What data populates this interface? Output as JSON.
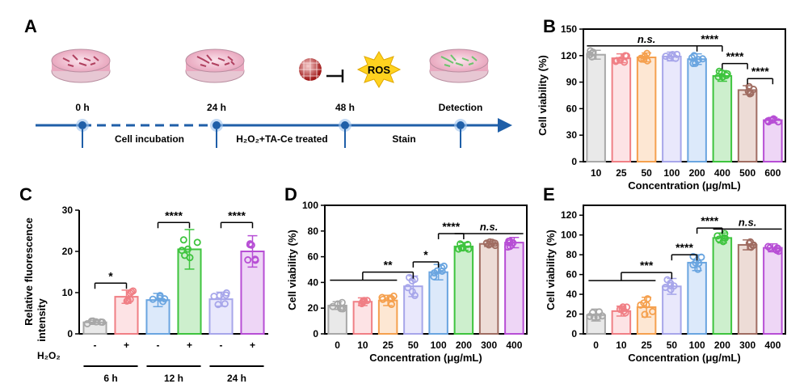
{
  "panel_labels": {
    "A": "A",
    "B": "B",
    "C": "C",
    "D": "D",
    "E": "E"
  },
  "timeline": {
    "times": [
      "0 h",
      "24 h",
      "48 h",
      "Detection"
    ],
    "stages": [
      "Cell incubation",
      "H₂O₂+TA-Ce treated",
      "Stain"
    ],
    "ros": "ROS"
  },
  "chart_data": [
    {
      "panel": "B",
      "type": "bar",
      "ylabel": "Cell viability (%)",
      "xlabel": "Concentration (μg/mL)",
      "ylim": [
        0,
        150
      ],
      "yticks": [
        0,
        30,
        60,
        90,
        120,
        150
      ],
      "categories": [
        "10",
        "25",
        "50",
        "100",
        "200",
        "400",
        "500",
        "600"
      ],
      "values": [
        121,
        117,
        118,
        119,
        116,
        97,
        81,
        47
      ],
      "errors": [
        5,
        5,
        5,
        5,
        6,
        6,
        5,
        3
      ],
      "colors": [
        "#a8a8a8",
        "#f07f85",
        "#f5a04e",
        "#a7a6ea",
        "#6aa5e0",
        "#3ec43e",
        "#a06d62",
        "#b74ed5"
      ],
      "fills": [
        "#e9e9e9",
        "#fde3e5",
        "#fde7d3",
        "#e9e8fc",
        "#dce9fa",
        "#cdefcd",
        "#eddcd6",
        "#eed6f6"
      ],
      "annotations": [
        {
          "text": "n.s.",
          "from": 0,
          "to": 4,
          "y": 131,
          "italic": true,
          "style": "line"
        },
        {
          "text": "****",
          "from": 4,
          "to": 5,
          "y": 131,
          "style": "bracket"
        },
        {
          "text": "****",
          "from": 5,
          "to": 6,
          "y": 111,
          "style": "bracket"
        },
        {
          "text": "****",
          "from": 6,
          "to": 7,
          "y": 94,
          "style": "bracket"
        }
      ]
    },
    {
      "panel": "C",
      "type": "bar",
      "ylabel": "Relative fluorescence intensity",
      "ylim": [
        0,
        30
      ],
      "yticks": [
        0,
        10,
        20,
        30
      ],
      "row_label": "H₂O₂",
      "categories": [
        "-",
        "+",
        "-",
        "+",
        "-",
        "+"
      ],
      "groups": [
        "6 h",
        "12 h",
        "24 h"
      ],
      "values": [
        2.8,
        9.0,
        8.2,
        20.5,
        8.4,
        20.0
      ],
      "errors": [
        0.5,
        1.6,
        1.6,
        4.8,
        1.7,
        3.8
      ],
      "colors": [
        "#a8a8a8",
        "#f07f85",
        "#6aa5e0",
        "#3ec43e",
        "#a7a6ea",
        "#b74ed5"
      ],
      "fills": [
        "#e9e9e9",
        "#fde3e5",
        "#dce9fa",
        "#cdefcd",
        "#e9e8fc",
        "#eed6f6"
      ],
      "annotations": [
        {
          "text": "*",
          "from": 0,
          "to": 1,
          "y": 12.3,
          "style": "bracket"
        },
        {
          "text": "****",
          "from": 2,
          "to": 3,
          "y": 27.0,
          "style": "bracket"
        },
        {
          "text": "****",
          "from": 4,
          "to": 5,
          "y": 27.0,
          "style": "bracket"
        }
      ]
    },
    {
      "panel": "D",
      "type": "bar",
      "ylabel": "Cell viability (%)",
      "xlabel": "Concentration (μg/mL)",
      "ylim": [
        0,
        100
      ],
      "yticks": [
        0,
        20,
        40,
        60,
        80,
        100
      ],
      "categories": [
        "0",
        "10",
        "25",
        "50",
        "100",
        "200",
        "300",
        "400"
      ],
      "values": [
        22,
        25,
        26,
        37,
        48,
        68,
        70,
        71
      ],
      "errors": [
        3,
        3,
        4,
        8,
        6,
        3,
        2,
        4
      ],
      "colors": [
        "#a8a8a8",
        "#f07f85",
        "#f5a04e",
        "#a7a6ea",
        "#6aa5e0",
        "#3ec43e",
        "#a06d62",
        "#b74ed5"
      ],
      "fills": [
        "#e9e9e9",
        "#fde3e5",
        "#fde7d3",
        "#e9e8fc",
        "#dce9fa",
        "#cdefcd",
        "#eddcd6",
        "#eed6f6"
      ],
      "annotations": [
        {
          "text": "**",
          "from": 0,
          "to": 3,
          "y": 48,
          "style": "group"
        },
        {
          "text": "*",
          "from": 3,
          "to": 4,
          "y": 56,
          "style": "bracket"
        },
        {
          "text": "****",
          "from": 4,
          "to": 5,
          "y": 78,
          "style": "bracket"
        },
        {
          "text": "n.s.",
          "from": 5,
          "to": 7,
          "y": 78,
          "italic": true,
          "style": "line"
        }
      ]
    },
    {
      "panel": "E",
      "type": "bar",
      "ylabel": "Cell viability (%)",
      "xlabel": "Concentration (μg/mL)",
      "ylim": [
        0,
        130
      ],
      "yticks": [
        0,
        20,
        40,
        60,
        80,
        100,
        120
      ],
      "categories": [
        "0",
        "10",
        "25",
        "50",
        "100",
        "200",
        "300",
        "400"
      ],
      "values": [
        19,
        23,
        27,
        48,
        72,
        97,
        90,
        87
      ],
      "errors": [
        6,
        5,
        10,
        8,
        8,
        5,
        5,
        4
      ],
      "colors": [
        "#a8a8a8",
        "#f07f85",
        "#f5a04e",
        "#a7a6ea",
        "#6aa5e0",
        "#3ec43e",
        "#a06d62",
        "#b74ed5"
      ],
      "fills": [
        "#e9e9e9",
        "#fde3e5",
        "#fde7d3",
        "#e9e8fc",
        "#dce9fa",
        "#cdefcd",
        "#eddcd6",
        "#eed6f6"
      ],
      "annotations": [
        {
          "text": "***",
          "from": 0,
          "to": 3,
          "y": 62,
          "style": "group"
        },
        {
          "text": "****",
          "from": 3,
          "to": 4,
          "y": 80,
          "style": "bracket"
        },
        {
          "text": "****",
          "from": 4,
          "to": 5,
          "y": 107,
          "style": "bracket"
        },
        {
          "text": "n.s.",
          "from": 5,
          "to": 7,
          "y": 106,
          "italic": true,
          "style": "line"
        }
      ]
    }
  ]
}
